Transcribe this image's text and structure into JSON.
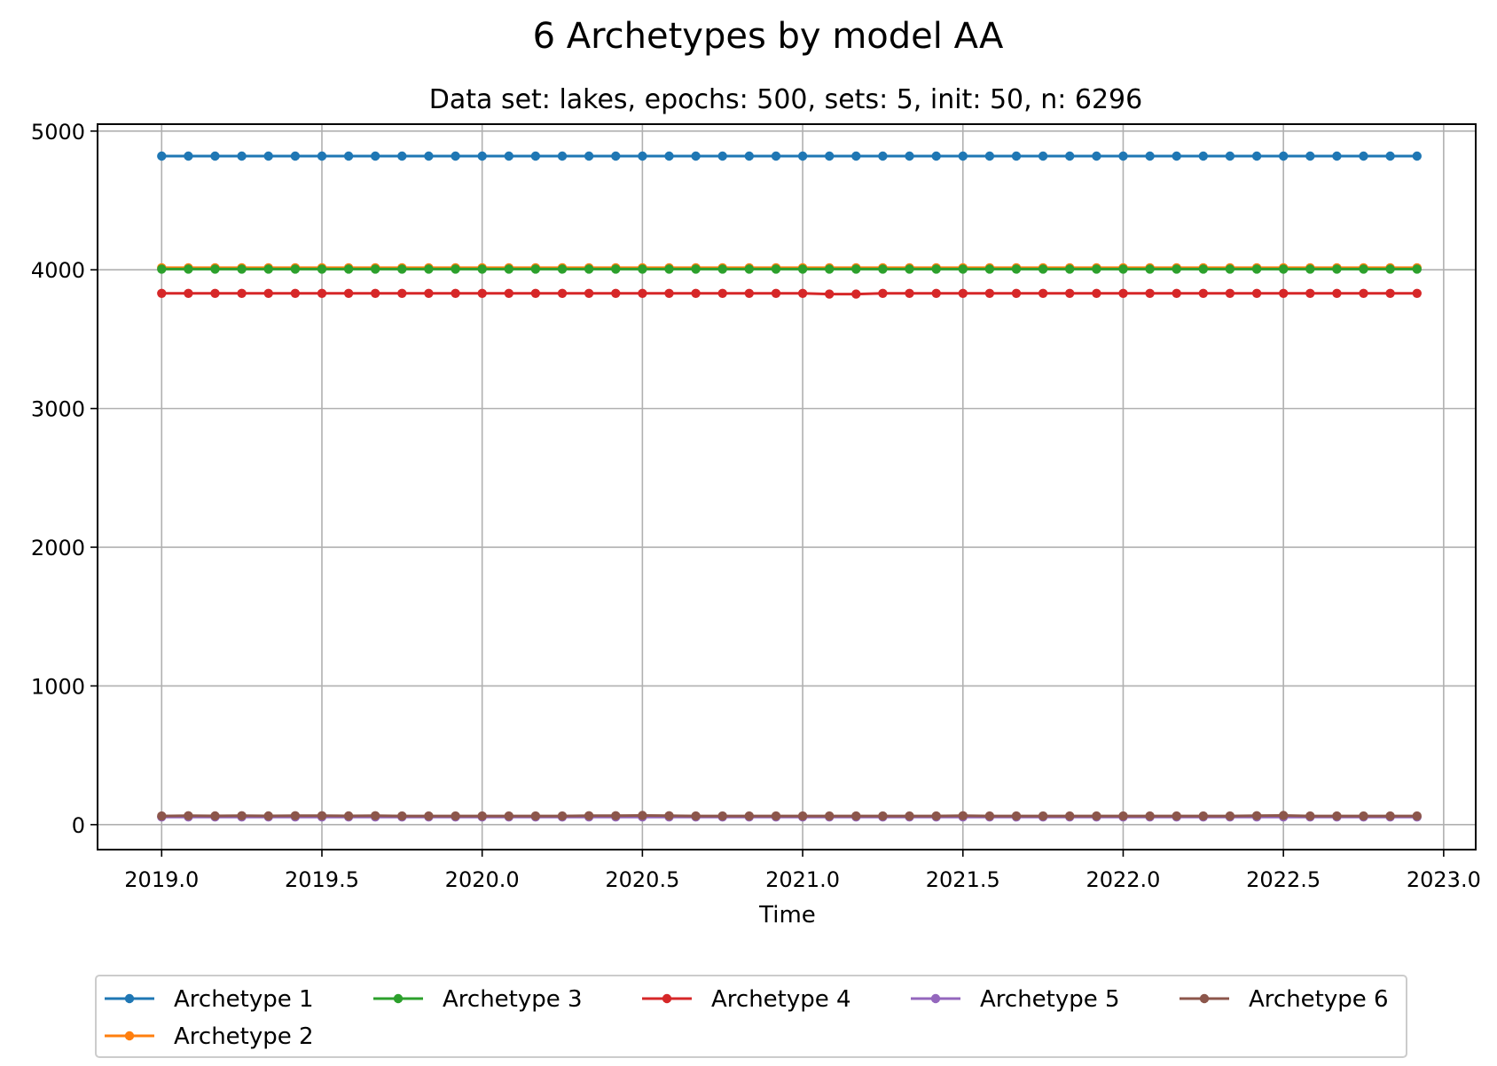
{
  "chart_data": {
    "type": "line",
    "title": "6 Archetypes by model AA",
    "subtitle": "Data set: lakes, epochs: 500, sets: 5, init: 50, n: 6296",
    "xlabel": "Time",
    "ylabel": "",
    "xlim": [
      2018.8,
      2023.1
    ],
    "ylim": [
      -180,
      5050
    ],
    "x_ticks": [
      2019.0,
      2019.5,
      2020.0,
      2020.5,
      2021.0,
      2021.5,
      2022.0,
      2022.5,
      2023.0
    ],
    "x_tick_labels": [
      "2019.0",
      "2019.5",
      "2020.0",
      "2020.5",
      "2021.0",
      "2021.5",
      "2022.0",
      "2022.5",
      "2023.0"
    ],
    "y_ticks": [
      0,
      1000,
      2000,
      3000,
      4000,
      5000
    ],
    "y_tick_labels": [
      "0",
      "1000",
      "2000",
      "3000",
      "4000",
      "5000"
    ],
    "grid": true,
    "legend_position": "bottom-center",
    "x": [
      2019.0,
      2019.0833,
      2019.1667,
      2019.25,
      2019.3333,
      2019.4167,
      2019.5,
      2019.5833,
      2019.6667,
      2019.75,
      2019.8333,
      2019.9167,
      2020.0,
      2020.0833,
      2020.1667,
      2020.25,
      2020.3333,
      2020.4167,
      2020.5,
      2020.5833,
      2020.6667,
      2020.75,
      2020.8333,
      2020.9167,
      2021.0,
      2021.0833,
      2021.1667,
      2021.25,
      2021.3333,
      2021.4167,
      2021.5,
      2021.5833,
      2021.6667,
      2021.75,
      2021.8333,
      2021.9167,
      2022.0,
      2022.0833,
      2022.1667,
      2022.25,
      2022.3333,
      2022.4167,
      2022.5,
      2022.5833,
      2022.6667,
      2022.75,
      2022.8333,
      2022.9167
    ],
    "series": [
      {
        "name": "Archetype 1",
        "color": "#1f77b4",
        "values": [
          4820,
          4820,
          4820,
          4820,
          4820,
          4820,
          4820,
          4820,
          4820,
          4820,
          4820,
          4820,
          4820,
          4820,
          4820,
          4820,
          4820,
          4820,
          4820,
          4820,
          4820,
          4820,
          4820,
          4820,
          4820,
          4820,
          4820,
          4820,
          4820,
          4820,
          4820,
          4820,
          4820,
          4820,
          4820,
          4820,
          4820,
          4820,
          4820,
          4820,
          4820,
          4820,
          4820,
          4820,
          4820,
          4820,
          4820,
          4820
        ]
      },
      {
        "name": "Archetype 2",
        "color": "#ff7f0e",
        "values": [
          4015,
          4015,
          4015,
          4015,
          4015,
          4015,
          4015,
          4015,
          4015,
          4015,
          4015,
          4015,
          4015,
          4015,
          4015,
          4015,
          4015,
          4015,
          4015,
          4015,
          4015,
          4015,
          4015,
          4015,
          4015,
          4015,
          4015,
          4015,
          4015,
          4015,
          4015,
          4015,
          4015,
          4015,
          4015,
          4015,
          4015,
          4015,
          4015,
          4015,
          4015,
          4015,
          4015,
          4015,
          4015,
          4015,
          4015,
          4015
        ]
      },
      {
        "name": "Archetype 3",
        "color": "#2ca02c",
        "values": [
          4005,
          4005,
          4005,
          4005,
          4005,
          4005,
          4005,
          4005,
          4005,
          4005,
          4005,
          4005,
          4005,
          4005,
          4005,
          4005,
          4005,
          4005,
          4005,
          4005,
          4005,
          4005,
          4005,
          4005,
          4005,
          4005,
          4005,
          4005,
          4005,
          4005,
          4005,
          4005,
          4005,
          4005,
          4005,
          4005,
          4005,
          4005,
          4005,
          4005,
          4005,
          4005,
          4005,
          4005,
          4005,
          4005,
          4005,
          4005
        ]
      },
      {
        "name": "Archetype 4",
        "color": "#d62728",
        "values": [
          3830,
          3830,
          3830,
          3830,
          3830,
          3830,
          3830,
          3830,
          3830,
          3830,
          3830,
          3830,
          3830,
          3830,
          3830,
          3830,
          3830,
          3830,
          3830,
          3830,
          3830,
          3830,
          3830,
          3830,
          3830,
          3825,
          3825,
          3830,
          3830,
          3830,
          3830,
          3830,
          3830,
          3830,
          3830,
          3830,
          3830,
          3830,
          3830,
          3830,
          3830,
          3830,
          3830,
          3830,
          3830,
          3830,
          3830,
          3830
        ]
      },
      {
        "name": "Archetype 5",
        "color": "#9467bd",
        "values": [
          55,
          55,
          55,
          55,
          55,
          55,
          55,
          55,
          55,
          55,
          55,
          55,
          55,
          55,
          55,
          55,
          55,
          55,
          55,
          55,
          55,
          55,
          55,
          55,
          55,
          55,
          55,
          55,
          55,
          55,
          55,
          55,
          55,
          55,
          55,
          55,
          55,
          55,
          55,
          55,
          55,
          55,
          55,
          55,
          55,
          55,
          55,
          55
        ]
      },
      {
        "name": "Archetype 6",
        "color": "#8c564b",
        "values": [
          62,
          64,
          63,
          64,
          63,
          64,
          64,
          63,
          64,
          62,
          62,
          62,
          62,
          62,
          62,
          62,
          64,
          64,
          66,
          64,
          62,
          62,
          62,
          62,
          62,
          62,
          62,
          62,
          62,
          62,
          64,
          62,
          62,
          62,
          62,
          62,
          62,
          62,
          62,
          62,
          62,
          64,
          66,
          62,
          62,
          62,
          62,
          62
        ]
      }
    ]
  }
}
